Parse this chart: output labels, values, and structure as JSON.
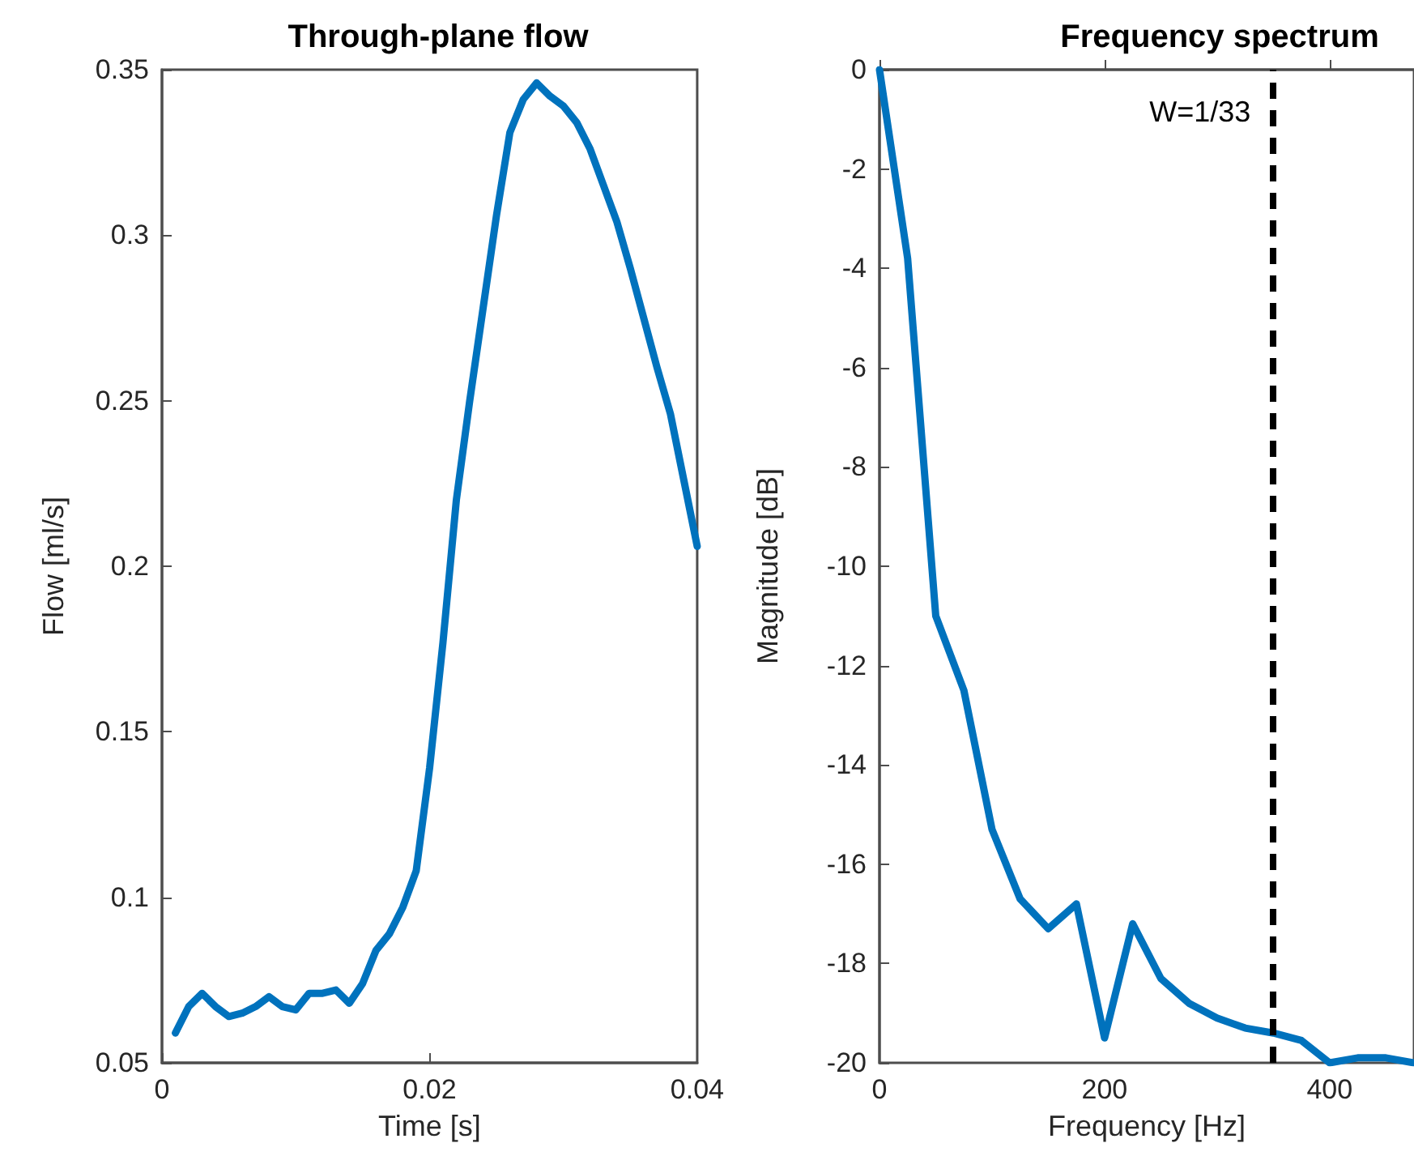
{
  "chart_data": [
    {
      "type": "line",
      "title": "Through-plane flow",
      "xlabel": "Time [s]",
      "ylabel": "Flow [ml/s]",
      "x": [
        0.001,
        0.002,
        0.003,
        0.004,
        0.005,
        0.006,
        0.007,
        0.008,
        0.009,
        0.01,
        0.011,
        0.012,
        0.013,
        0.014,
        0.015,
        0.016,
        0.017,
        0.018,
        0.019,
        0.02,
        0.021,
        0.022,
        0.023,
        0.024,
        0.025,
        0.026,
        0.027,
        0.028,
        0.029,
        0.03,
        0.031,
        0.032,
        0.033,
        0.034,
        0.035,
        0.036,
        0.037,
        0.038,
        0.039,
        0.04
      ],
      "series": [
        {
          "color": "#0072bd",
          "values": [
            0.059,
            0.067,
            0.071,
            0.067,
            0.064,
            0.065,
            0.067,
            0.07,
            0.067,
            0.066,
            0.071,
            0.071,
            0.072,
            0.068,
            0.074,
            0.084,
            0.089,
            0.097,
            0.108,
            0.139,
            0.177,
            0.22,
            0.25,
            0.278,
            0.306,
            0.331,
            0.341,
            0.346,
            0.342,
            0.339,
            0.334,
            0.326,
            0.315,
            0.304,
            0.29,
            0.275,
            0.26,
            0.246,
            0.226,
            0.206
          ]
        }
      ],
      "xlim": [
        0,
        0.04
      ],
      "xticks": [
        0,
        0.02,
        0.04
      ],
      "ylim": [
        0.05,
        0.35
      ],
      "yticks": [
        0.05,
        0.1,
        0.15,
        0.2,
        0.25,
        0.3,
        0.35
      ],
      "grid": false,
      "marker": "none",
      "line_style": "solid"
    },
    {
      "type": "line",
      "title": "Frequency spectrum",
      "xlabel": "Frequency [Hz]",
      "ylabel": "Magnitude [dB]",
      "x": [
        0,
        25,
        50,
        75,
        100,
        125,
        150,
        175,
        200,
        225,
        250,
        275,
        300,
        325,
        350,
        375,
        400,
        425,
        450,
        475
      ],
      "series": [
        {
          "color": "#0072bd",
          "values": [
            0,
            -3.8,
            -11.0,
            -12.5,
            -15.3,
            -16.7,
            -17.3,
            -16.8,
            -19.5,
            -17.2,
            -18.3,
            -18.8,
            -19.1,
            -19.3,
            -19.4,
            -19.55,
            -20,
            -19.9,
            -19.9,
            -20
          ]
        }
      ],
      "xlim": [
        0,
        475
      ],
      "xticks": [
        0,
        200,
        400
      ],
      "ylim": [
        -20,
        0
      ],
      "yticks": [
        -20,
        -18,
        -16,
        -14,
        -12,
        -10,
        -8,
        -6,
        -4,
        -2,
        0
      ],
      "ref_lines": [
        {
          "axis": "x",
          "value": 350,
          "color": "#000000",
          "line_style": "dashed"
        }
      ],
      "annotations": [
        {
          "text": "W=1/33",
          "x": 350,
          "y": -0.85
        }
      ],
      "grid": false,
      "marker": "none",
      "line_style": "solid"
    }
  ]
}
